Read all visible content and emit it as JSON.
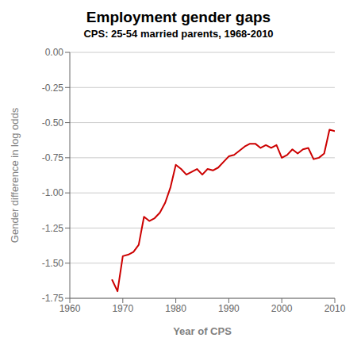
{
  "chart_data": {
    "type": "line",
    "title": "Employment gender gaps",
    "subtitle": "CPS: 25-54 married parents, 1968-2010",
    "xlabel": "Year of CPS",
    "ylabel": "Gender difference in log odds",
    "x": [
      1968,
      1969,
      1970,
      1971,
      1972,
      1973,
      1974,
      1975,
      1976,
      1977,
      1978,
      1979,
      1980,
      1981,
      1982,
      1983,
      1984,
      1985,
      1986,
      1987,
      1988,
      1989,
      1990,
      1991,
      1992,
      1993,
      1994,
      1995,
      1996,
      1997,
      1998,
      1999,
      2000,
      2001,
      2002,
      2003,
      2004,
      2005,
      2006,
      2007,
      2008,
      2009,
      2010
    ],
    "values": [
      -1.62,
      -1.7,
      -1.45,
      -1.44,
      -1.42,
      -1.37,
      -1.17,
      -1.2,
      -1.18,
      -1.14,
      -1.07,
      -0.96,
      -0.8,
      -0.83,
      -0.87,
      -0.85,
      -0.83,
      -0.87,
      -0.83,
      -0.84,
      -0.82,
      -0.78,
      -0.74,
      -0.73,
      -0.7,
      -0.67,
      -0.65,
      -0.65,
      -0.68,
      -0.66,
      -0.68,
      -0.66,
      -0.75,
      -0.73,
      -0.69,
      -0.72,
      -0.69,
      -0.68,
      -0.76,
      -0.75,
      -0.72,
      -0.55,
      -0.56
    ],
    "color": "#cc0000",
    "xlim": [
      1960,
      2010
    ],
    "ylim": [
      -1.75,
      0.0
    ],
    "xticks": [
      1960,
      1970,
      1980,
      1990,
      2000,
      2010
    ],
    "yticks": [
      {
        "value": 0.0,
        "label": "0.00"
      },
      -0.25,
      {
        "value": -0.5,
        "label": "-0.50"
      },
      -0.75,
      {
        "value": -1.0,
        "label": "-1.00"
      },
      -1.25,
      {
        "value": -1.5,
        "label": "-1.50"
      },
      -1.75
    ],
    "grid": true
  }
}
